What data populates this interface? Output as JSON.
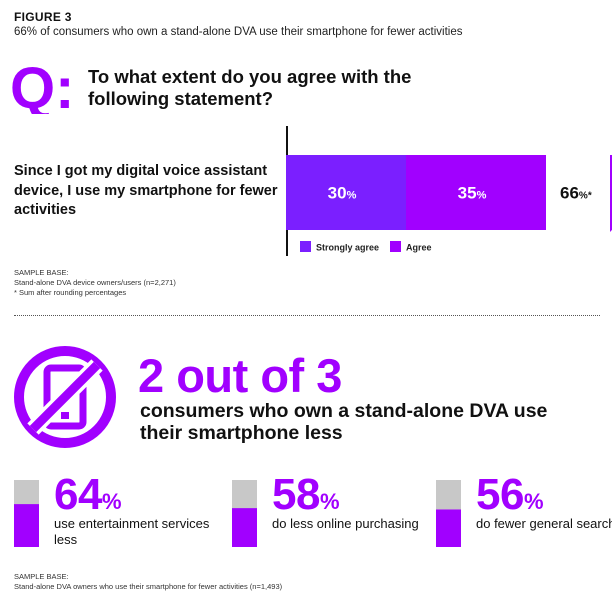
{
  "figure": {
    "label": "FIGURE 3",
    "subtitle": "66% of consumers who own a stand-alone DVA use their smartphone for fewer activities"
  },
  "question": {
    "q_letter": "Q:",
    "text": "To what extent do you agree with the following statement?",
    "statement": "Since I got my digital voice assistant device, I use my smartphone for fewer activities"
  },
  "colors": {
    "accent": "#a100ff",
    "strongly_agree": "#7b1fff",
    "agree": "#a100ff",
    "bar_bg": "#c8c8c8",
    "arrow": "#a100ff"
  },
  "chart_data": [
    {
      "type": "bar",
      "orientation": "horizontal-stacked",
      "categories": [
        "Since I got my digital voice assistant device, I use my smartphone for fewer activities"
      ],
      "series": [
        {
          "name": "Strongly agree",
          "values": [
            30
          ],
          "label": "30",
          "unit": "%"
        },
        {
          "name": "Agree",
          "values": [
            35
          ],
          "label": "35",
          "unit": "%"
        }
      ],
      "total": {
        "value": 66,
        "label": "66",
        "unit": "%*"
      },
      "legend": [
        "Strongly agree",
        "Agree"
      ],
      "legend_position": "bottom"
    },
    {
      "type": "bar",
      "orientation": "vertical",
      "categories": [
        "use entertainment services less",
        "do less online purchasing",
        "do fewer general searches"
      ],
      "values": [
        64,
        58,
        56
      ],
      "ylim": [
        0,
        100
      ]
    }
  ],
  "notes": {
    "sample_base_label": "SAMPLE BASE:",
    "sample_base_text": "Stand-alone DVA device owners/users (n=2,271)",
    "footnote": "* Sum after rounding percentages",
    "sample_base2_label": "SAMPLE BASE:",
    "sample_base2_text": "Stand-alone DVA owners who use their smartphone for fewer activities (n=1,493)"
  },
  "headline": {
    "big": "2 out of 3",
    "sub": "consumers who own a stand-alone DVA use their smartphone less"
  },
  "stats": [
    {
      "number": "64",
      "pct": "%",
      "desc": "use entertainment services less"
    },
    {
      "number": "58",
      "pct": "%",
      "desc": "do less online purchasing"
    },
    {
      "number": "56",
      "pct": "%",
      "desc": "do fewer general searches"
    }
  ],
  "icons": {
    "q_logo": "q-letter-icon",
    "phone": "no-smartphone-icon"
  }
}
